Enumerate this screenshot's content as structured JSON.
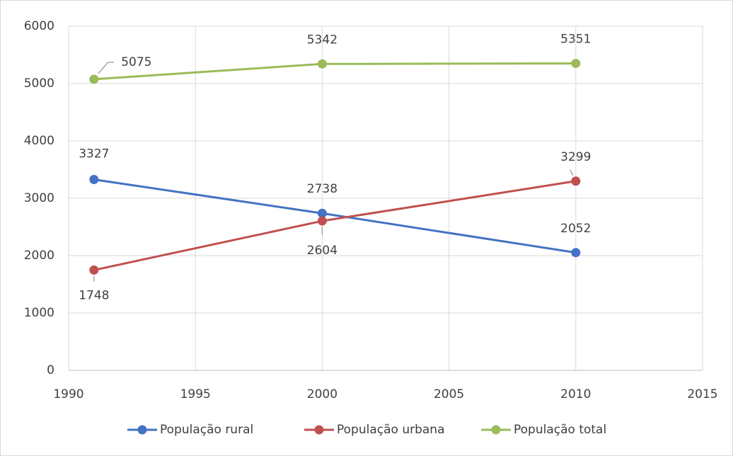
{
  "chart_data": {
    "type": "line",
    "x": [
      1991,
      2000,
      2010
    ],
    "series": [
      {
        "name": "População rural",
        "color": "#4472c4",
        "values": [
          3327,
          2738,
          2052
        ]
      },
      {
        "name": "População urbana",
        "color": "#c0504d",
        "values": [
          1748,
          2604,
          3299
        ]
      },
      {
        "name": "População total",
        "color": "#9bbb59",
        "values": [
          5075,
          5342,
          5351
        ]
      }
    ],
    "xlim": [
      1990,
      2015
    ],
    "xticks": [
      1990,
      1995,
      2000,
      2005,
      2010,
      2015
    ],
    "ylim": [
      0,
      6000
    ],
    "yticks": [
      0,
      1000,
      2000,
      3000,
      4000,
      5000,
      6000
    ],
    "grid": true,
    "legend": "bottom"
  }
}
